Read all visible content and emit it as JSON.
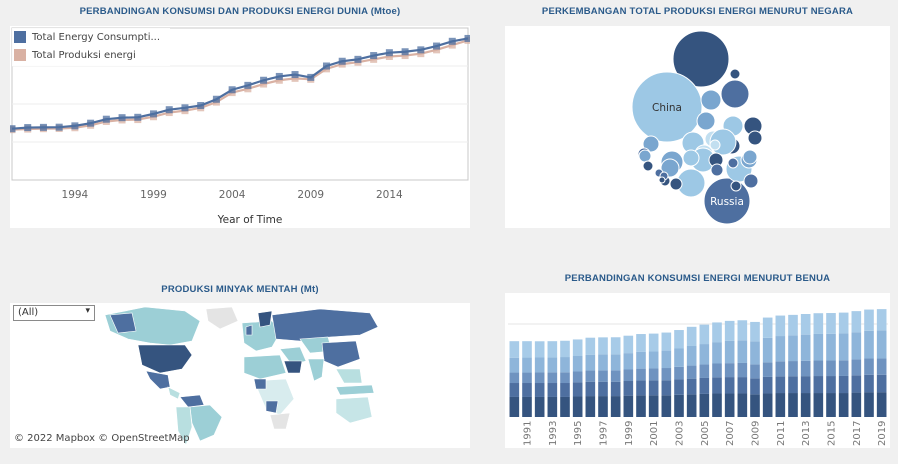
{
  "titles": {
    "line": "PERBANDINGAN KONSUMSI DAN PRODUKSI ENERGI DUNIA (Mtoe)",
    "bubble": "PERKEMBANGAN TOTAL PRODUKSI ENERGI MENURUT NEGARA",
    "map": "PRODUKSI MINYAK MENTAH (Mt)",
    "bar": "PERBANDINGAN KONSUMSI ENERGI MENURUT BENUA"
  },
  "map": {
    "filter_value": "(All)",
    "credit": "© 2022 Mapbox  © OpenStreetMap"
  },
  "colors": {
    "consumption": "#4e6fa0",
    "production": "#d9b1a3",
    "accent": "#2a5a8a"
  },
  "chart_data": [
    {
      "type": "line",
      "title": "PERBANDINGAN KONSUMSI DAN PRODUKSI ENERGI DUNIA (Mtoe)",
      "xlabel": "Year of Time",
      "xticks": [
        "1994",
        "1999",
        "2004",
        "2009",
        "2014"
      ],
      "x": [
        1990,
        1991,
        1992,
        1993,
        1994,
        1995,
        1996,
        1997,
        1998,
        1999,
        2000,
        2001,
        2002,
        2003,
        2004,
        2005,
        2006,
        2007,
        2008,
        2009,
        2010,
        2011,
        2012,
        2013,
        2014,
        2015,
        2016,
        2017,
        2018,
        2019
      ],
      "series": [
        {
          "name": "Total Energy Consumpti...",
          "values": [
            8700,
            8760,
            8770,
            8780,
            8850,
            8990,
            9200,
            9280,
            9300,
            9480,
            9700,
            9800,
            9920,
            10250,
            10750,
            10980,
            11250,
            11450,
            11550,
            11400,
            12000,
            12250,
            12350,
            12550,
            12700,
            12750,
            12850,
            13050,
            13300,
            13450
          ]
        },
        {
          "name": "Total Produksi energi",
          "values": [
            8650,
            8680,
            8700,
            8710,
            8750,
            8880,
            9080,
            9160,
            9180,
            9330,
            9550,
            9650,
            9800,
            10100,
            10600,
            10800,
            11050,
            11250,
            11350,
            11300,
            11850,
            12100,
            12200,
            12350,
            12500,
            12550,
            12650,
            12850,
            13100,
            13350
          ]
        }
      ],
      "ylim": [
        6000,
        14000
      ]
    },
    {
      "type": "bubble",
      "title": "PERKEMBANGAN TOTAL PRODUKSI ENERGI MENURUT NEGARA",
      "labels": [
        "China",
        "Russia"
      ]
    },
    {
      "type": "bar",
      "title": "PERBANDINGAN KONSUMSI ENERGI MENURUT BENUA",
      "categories": [
        "1990",
        "1991",
        "1992",
        "1993",
        "1994",
        "1995",
        "1996",
        "1997",
        "1998",
        "1999",
        "2000",
        "2001",
        "2002",
        "2003",
        "2004",
        "2005",
        "2006",
        "2007",
        "2008",
        "2009",
        "2010",
        "2011",
        "2012",
        "2013",
        "2014",
        "2015",
        "2016",
        "2017",
        "2018",
        "2019"
      ],
      "xticks": [
        "1991",
        "1993",
        "1995",
        "1997",
        "1999",
        "2001",
        "2003",
        "2005",
        "2007",
        "2009",
        "2011",
        "2013",
        "2015",
        "2017",
        "2019"
      ],
      "series": [
        {
          "name": "",
          "values": [
            2300,
            2300,
            2300,
            2300,
            2300,
            2350,
            2400,
            2400,
            2400,
            2450,
            2500,
            2500,
            2500,
            2550,
            2600,
            2650,
            2700,
            2700,
            2700,
            2600,
            2700,
            2750,
            2750,
            2750,
            2750,
            2750,
            2750,
            2800,
            2850,
            2850
          ]
        },
        {
          "name": "",
          "values": [
            1600,
            1600,
            1600,
            1600,
            1600,
            1620,
            1650,
            1650,
            1650,
            1680,
            1700,
            1700,
            1720,
            1760,
            1800,
            1830,
            1860,
            1880,
            1880,
            1840,
            1900,
            1920,
            1930,
            1940,
            1950,
            1950,
            1960,
            1980,
            2000,
            2000
          ]
        },
        {
          "name": "",
          "values": [
            1200,
            1200,
            1210,
            1220,
            1230,
            1250,
            1280,
            1300,
            1300,
            1320,
            1350,
            1370,
            1400,
            1450,
            1500,
            1540,
            1580,
            1600,
            1620,
            1600,
            1680,
            1720,
            1740,
            1760,
            1780,
            1790,
            1800,
            1830,
            1860,
            1870
          ]
        },
        {
          "name": "",
          "values": [
            1700,
            1720,
            1720,
            1720,
            1750,
            1780,
            1820,
            1840,
            1850,
            1880,
            1920,
            1950,
            2000,
            2100,
            2250,
            2350,
            2450,
            2550,
            2600,
            2650,
            2800,
            2900,
            2950,
            3000,
            3050,
            3060,
            3080,
            3120,
            3180,
            3220
          ]
        },
        {
          "name": "",
          "values": [
            1900,
            1880,
            1860,
            1860,
            1870,
            1900,
            1950,
            1950,
            1950,
            2000,
            2050,
            2050,
            2070,
            2120,
            2200,
            2230,
            2260,
            2300,
            2300,
            2220,
            2330,
            2350,
            2350,
            2370,
            2380,
            2380,
            2390,
            2420,
            2440,
            2440
          ]
        }
      ],
      "ylim": [
        0,
        14000
      ]
    }
  ]
}
